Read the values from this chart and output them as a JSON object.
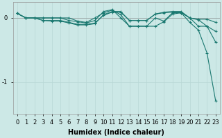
{
  "title": "",
  "xlabel": "Humidex (Indice chaleur)",
  "ylabel": "",
  "bg_color": "#cce8e6",
  "grid_color": "#b8d8d6",
  "line_color": "#1a7870",
  "x_values": [
    0,
    1,
    2,
    3,
    4,
    5,
    6,
    7,
    8,
    9,
    10,
    11,
    12,
    13,
    14,
    15,
    16,
    17,
    18,
    19,
    20,
    21,
    22,
    23
  ],
  "series": [
    [
      0.07,
      0.0,
      0.0,
      0.0,
      0.0,
      0.0,
      0.0,
      -0.05,
      -0.07,
      0.0,
      0.08,
      0.12,
      0.05,
      -0.13,
      -0.13,
      -0.13,
      0.0,
      -0.05,
      0.08,
      0.08,
      0.0,
      -0.13,
      -0.13,
      -0.38
    ],
    [
      0.07,
      0.0,
      0.0,
      -0.04,
      -0.04,
      -0.04,
      -0.07,
      -0.1,
      -0.1,
      -0.08,
      0.04,
      0.09,
      0.09,
      -0.04,
      -0.04,
      -0.04,
      0.06,
      0.09,
      0.1,
      0.1,
      0.0,
      -0.02,
      -0.02,
      -0.07
    ],
    [
      0.07,
      0.0,
      0.0,
      -0.04,
      -0.05,
      -0.05,
      -0.08,
      -0.11,
      -0.11,
      -0.09,
      0.05,
      0.1,
      0.1,
      -0.04,
      -0.04,
      -0.04,
      0.06,
      0.08,
      0.09,
      0.09,
      0.0,
      -0.03,
      -0.13,
      -0.21
    ],
    [
      0.07,
      0.0,
      0.0,
      -0.0,
      -0.0,
      -0.0,
      -0.04,
      -0.06,
      -0.08,
      -0.04,
      0.1,
      0.13,
      0.0,
      -0.13,
      -0.13,
      -0.13,
      -0.13,
      -0.06,
      0.06,
      0.08,
      -0.07,
      -0.19,
      -0.55,
      -1.3
    ]
  ],
  "ylim": [
    -1.5,
    0.25
  ],
  "yticks": [
    0,
    -1
  ],
  "ytick_labels": [
    "0",
    "-1"
  ],
  "xlim": [
    -0.5,
    23.5
  ],
  "title_fontsize": 7,
  "label_fontsize": 7,
  "tick_fontsize": 6,
  "figsize": [
    3.2,
    2.0
  ],
  "dpi": 100
}
